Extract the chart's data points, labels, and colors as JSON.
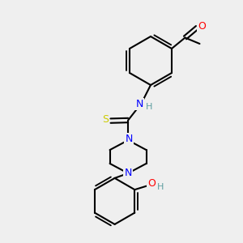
{
  "bg_color": "#efefef",
  "bond_color": "#000000",
  "bond_lw": 1.5,
  "atom_colors": {
    "N": "#0000ff",
    "O": "#ff0000",
    "S": "#cccc00",
    "H": "#5f9ea0",
    "C": "#000000"
  },
  "font_size": 8,
  "font_size_small": 7
}
